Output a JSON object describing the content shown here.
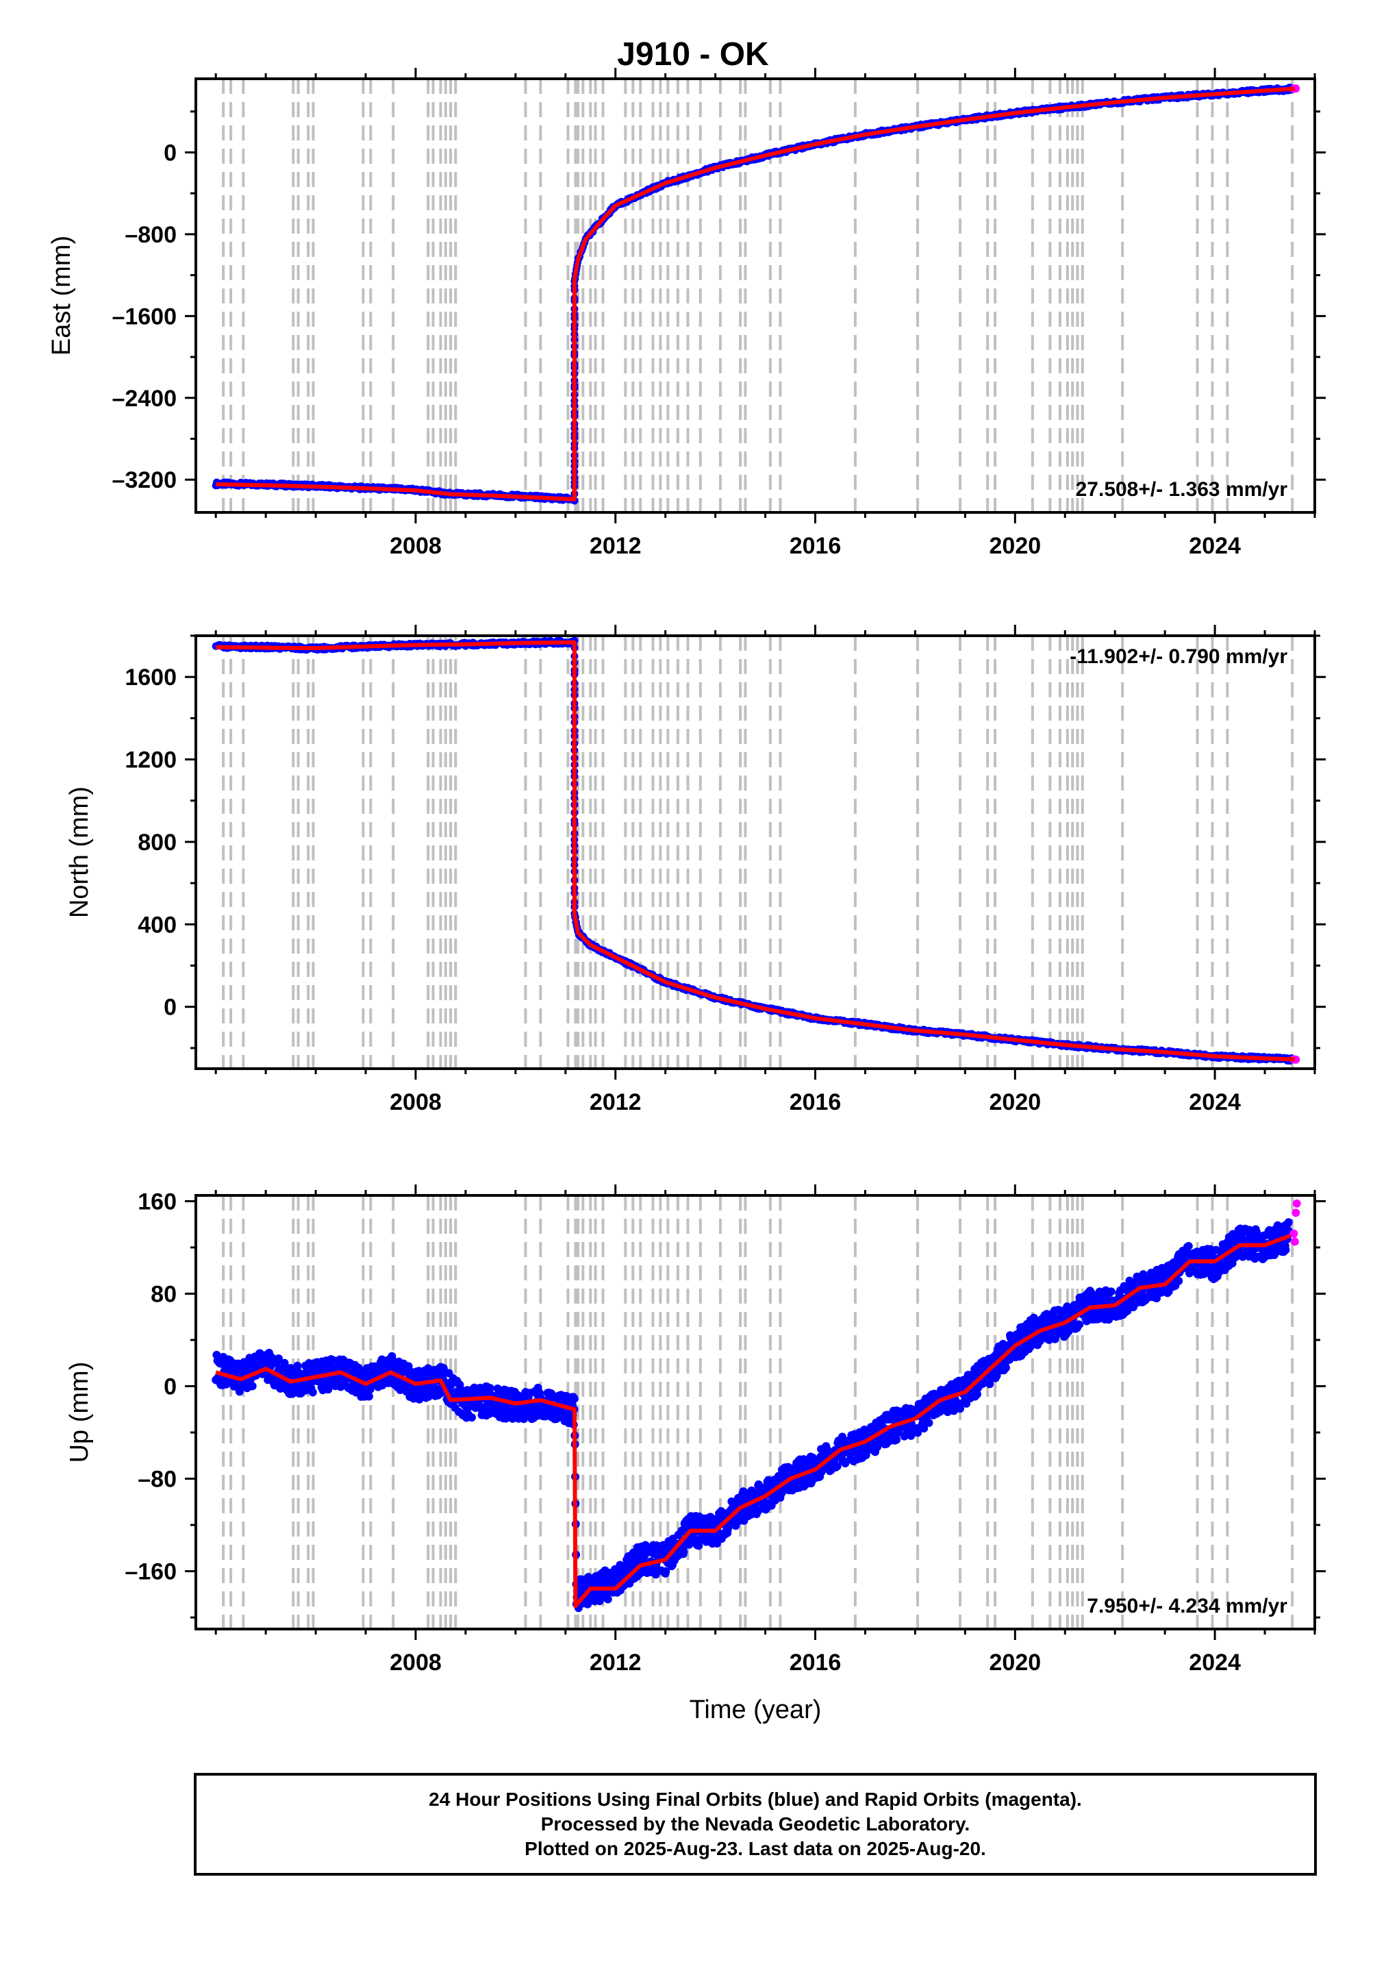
{
  "title": "J910 - OK",
  "footer": {
    "line1": "24 Hour Positions Using Final Orbits (blue) and Rapid Orbits (magenta).",
    "line2": "Processed by the Nevada Geodetic Laboratory.",
    "line3": "Plotted on 2025-Aug-23. Last data on 2025-Aug-20."
  },
  "colors": {
    "final_orbits": "#0000ff",
    "rapid_orbits": "#ff00ff",
    "model": "#ff0000",
    "event_lines": "#c0c0c0",
    "axes": "#000000"
  },
  "chart_data": [
    {
      "type": "scatter",
      "title": "J910 - OK",
      "ylabel": "East (mm)",
      "xlabel": "",
      "xlim": [
        2003.6,
        2026.0
      ],
      "ylim": [
        -3520,
        720
      ],
      "xticks": [
        2008,
        2012,
        2016,
        2020,
        2024
      ],
      "yticks": [
        -3200,
        -2400,
        -1600,
        -800,
        0
      ],
      "rate_label": "27.508+/- 1.363 mm/yr",
      "rate_position": "bottom-right",
      "series": [
        {
          "name": "Final Orbits (blue)",
          "color": "#0000ff",
          "points": [
            [
              2004.0,
              -3240
            ],
            [
              2005.0,
              -3248
            ],
            [
              2006.0,
              -3262
            ],
            [
              2007.0,
              -3282
            ],
            [
              2008.0,
              -3300
            ],
            [
              2008.7,
              -3340
            ],
            [
              2009.5,
              -3350
            ],
            [
              2010.3,
              -3368
            ],
            [
              2011.18,
              -3390
            ],
            [
              2011.18,
              -1250
            ],
            [
              2011.25,
              -1050
            ],
            [
              2011.4,
              -850
            ],
            [
              2011.7,
              -680
            ],
            [
              2012.0,
              -520
            ],
            [
              2012.5,
              -410
            ],
            [
              2013.0,
              -300
            ],
            [
              2014.0,
              -150
            ],
            [
              2015.0,
              -30
            ],
            [
              2016.0,
              80
            ],
            [
              2017.0,
              175
            ],
            [
              2018.0,
              250
            ],
            [
              2019.0,
              320
            ],
            [
              2020.0,
              385
            ],
            [
              2021.0,
              440
            ],
            [
              2022.0,
              490
            ],
            [
              2023.0,
              535
            ],
            [
              2024.0,
              570
            ],
            [
              2025.0,
              605
            ],
            [
              2025.55,
              620
            ]
          ]
        },
        {
          "name": "Rapid Orbits (magenta)",
          "color": "#ff00ff",
          "points": [
            [
              2025.58,
              622
            ],
            [
              2025.62,
              625
            ]
          ]
        }
      ],
      "model": [
        [
          2004.0,
          -3245
        ],
        [
          2005.0,
          -3255
        ],
        [
          2006.0,
          -3268
        ],
        [
          2007.0,
          -3285
        ],
        [
          2008.0,
          -3305
        ],
        [
          2008.7,
          -3342
        ],
        [
          2009.5,
          -3355
        ],
        [
          2010.3,
          -3372
        ],
        [
          2011.18,
          -3392
        ],
        [
          2011.18,
          -1240
        ],
        [
          2011.25,
          -1050
        ],
        [
          2011.4,
          -850
        ],
        [
          2011.7,
          -680
        ],
        [
          2012.0,
          -520
        ],
        [
          2012.5,
          -410
        ],
        [
          2013.0,
          -300
        ],
        [
          2014.0,
          -150
        ],
        [
          2015.0,
          -30
        ],
        [
          2016.0,
          80
        ],
        [
          2017.0,
          175
        ],
        [
          2018.0,
          250
        ],
        [
          2019.0,
          320
        ],
        [
          2020.0,
          385
        ],
        [
          2021.0,
          440
        ],
        [
          2022.0,
          490
        ],
        [
          2023.0,
          535
        ],
        [
          2024.0,
          570
        ],
        [
          2025.0,
          605
        ],
        [
          2025.6,
          622
        ]
      ]
    },
    {
      "type": "scatter",
      "ylabel": "North (mm)",
      "xlabel": "",
      "xlim": [
        2003.6,
        2026.0
      ],
      "ylim": [
        -300,
        1800
      ],
      "xticks": [
        2008,
        2012,
        2016,
        2020,
        2024
      ],
      "yticks": [
        0,
        400,
        800,
        1200,
        1600
      ],
      "rate_label": "-11.902+/- 0.790 mm/yr",
      "rate_position": "top-right",
      "series": [
        {
          "name": "Final Orbits (blue)",
          "color": "#0000ff",
          "points": [
            [
              2004.0,
              1748
            ],
            [
              2005.0,
              1745
            ],
            [
              2006.0,
              1738
            ],
            [
              2007.0,
              1748
            ],
            [
              2008.0,
              1755
            ],
            [
              2009.0,
              1758
            ],
            [
              2010.0,
              1764
            ],
            [
              2011.18,
              1770
            ],
            [
              2011.18,
              450
            ],
            [
              2011.25,
              360
            ],
            [
              2011.5,
              300
            ],
            [
              2012.0,
              240
            ],
            [
              2012.5,
              180
            ],
            [
              2013.0,
              120
            ],
            [
              2014.0,
              45
            ],
            [
              2015.0,
              -10
            ],
            [
              2016.0,
              -55
            ],
            [
              2017.0,
              -85
            ],
            [
              2018.0,
              -115
            ],
            [
              2019.0,
              -135
            ],
            [
              2020.0,
              -160
            ],
            [
              2021.0,
              -185
            ],
            [
              2022.0,
              -205
            ],
            [
              2023.0,
              -220
            ],
            [
              2024.0,
              -240
            ],
            [
              2025.0,
              -250
            ],
            [
              2025.55,
              -255
            ]
          ]
        },
        {
          "name": "Rapid Orbits (magenta)",
          "color": "#ff00ff",
          "points": [
            [
              2025.58,
              -255
            ],
            [
              2025.62,
              -256
            ]
          ]
        }
      ],
      "model": [
        [
          2004.0,
          1745
        ],
        [
          2005.0,
          1742
        ],
        [
          2006.0,
          1740
        ],
        [
          2007.0,
          1748
        ],
        [
          2008.0,
          1755
        ],
        [
          2009.0,
          1758
        ],
        [
          2010.0,
          1764
        ],
        [
          2011.18,
          1768
        ],
        [
          2011.18,
          450
        ],
        [
          2011.25,
          360
        ],
        [
          2011.5,
          300
        ],
        [
          2012.0,
          240
        ],
        [
          2012.5,
          180
        ],
        [
          2013.0,
          120
        ],
        [
          2014.0,
          45
        ],
        [
          2015.0,
          -10
        ],
        [
          2016.0,
          -55
        ],
        [
          2017.0,
          -85
        ],
        [
          2018.0,
          -115
        ],
        [
          2019.0,
          -135
        ],
        [
          2020.0,
          -160
        ],
        [
          2021.0,
          -185
        ],
        [
          2022.0,
          -205
        ],
        [
          2023.0,
          -220
        ],
        [
          2024.0,
          -240
        ],
        [
          2025.0,
          -250
        ],
        [
          2025.6,
          -255
        ]
      ]
    },
    {
      "type": "scatter",
      "ylabel": "Up (mm)",
      "xlabel": "Time (year)",
      "xlim": [
        2003.6,
        2026.0
      ],
      "ylim": [
        -210,
        165
      ],
      "xticks": [
        2008,
        2012,
        2016,
        2020,
        2024
      ],
      "yticks": [
        -160,
        -80,
        0,
        80,
        160
      ],
      "rate_label": "7.950+/- 4.234 mm/yr",
      "rate_position": "bottom-right",
      "series": [
        {
          "name": "Final Orbits (blue)",
          "color": "#0000ff",
          "points": [
            [
              2004.0,
              15
            ],
            [
              2004.5,
              8
            ],
            [
              2005.0,
              18
            ],
            [
              2005.5,
              5
            ],
            [
              2006.0,
              8
            ],
            [
              2006.5,
              12
            ],
            [
              2007.0,
              2
            ],
            [
              2007.5,
              15
            ],
            [
              2008.0,
              0
            ],
            [
              2008.5,
              5
            ],
            [
              2009.0,
              -15
            ],
            [
              2009.5,
              -12
            ],
            [
              2010.0,
              -18
            ],
            [
              2010.5,
              -14
            ],
            [
              2011.0,
              -20
            ],
            [
              2011.18,
              -22
            ],
            [
              2011.22,
              -180
            ],
            [
              2011.5,
              -175
            ],
            [
              2012.0,
              -170
            ],
            [
              2012.5,
              -150
            ],
            [
              2013.0,
              -150
            ],
            [
              2013.5,
              -125
            ],
            [
              2014.0,
              -125
            ],
            [
              2014.5,
              -105
            ],
            [
              2015.0,
              -95
            ],
            [
              2015.5,
              -80
            ],
            [
              2016.0,
              -70
            ],
            [
              2016.5,
              -55
            ],
            [
              2017.0,
              -50
            ],
            [
              2017.5,
              -35
            ],
            [
              2018.0,
              -30
            ],
            [
              2018.5,
              -15
            ],
            [
              2019.0,
              -5
            ],
            [
              2019.5,
              15
            ],
            [
              2020.0,
              35
            ],
            [
              2020.5,
              50
            ],
            [
              2021.0,
              55
            ],
            [
              2021.5,
              70
            ],
            [
              2022.0,
              70
            ],
            [
              2022.5,
              85
            ],
            [
              2023.0,
              90
            ],
            [
              2023.5,
              110
            ],
            [
              2024.0,
              105
            ],
            [
              2024.5,
              125
            ],
            [
              2025.0,
              122
            ],
            [
              2025.5,
              130
            ]
          ]
        },
        {
          "name": "Rapid Orbits (magenta)",
          "color": "#ff00ff",
          "points": [
            [
              2025.58,
              132
            ],
            [
              2025.6,
              125
            ],
            [
              2025.62,
              150
            ],
            [
              2025.64,
              158
            ]
          ]
        }
      ],
      "model": [
        [
          2004.0,
          12
        ],
        [
          2004.5,
          6
        ],
        [
          2005.0,
          15
        ],
        [
          2005.5,
          4
        ],
        [
          2006.0,
          8
        ],
        [
          2006.5,
          12
        ],
        [
          2007.0,
          2
        ],
        [
          2007.5,
          12
        ],
        [
          2008.0,
          2
        ],
        [
          2008.5,
          5
        ],
        [
          2008.7,
          -12
        ],
        [
          2009.5,
          -10
        ],
        [
          2010.0,
          -15
        ],
        [
          2010.5,
          -12
        ],
        [
          2011.0,
          -18
        ],
        [
          2011.18,
          -20
        ],
        [
          2011.2,
          -190
        ],
        [
          2011.5,
          -175
        ],
        [
          2012.0,
          -175
        ],
        [
          2012.5,
          -155
        ],
        [
          2013.0,
          -150
        ],
        [
          2013.5,
          -125
        ],
        [
          2014.0,
          -125
        ],
        [
          2014.5,
          -105
        ],
        [
          2015.0,
          -95
        ],
        [
          2015.5,
          -80
        ],
        [
          2016.0,
          -72
        ],
        [
          2016.5,
          -55
        ],
        [
          2017.0,
          -48
        ],
        [
          2017.5,
          -35
        ],
        [
          2018.0,
          -28
        ],
        [
          2018.5,
          -12
        ],
        [
          2019.0,
          -5
        ],
        [
          2019.5,
          15
        ],
        [
          2020.0,
          35
        ],
        [
          2020.5,
          48
        ],
        [
          2021.0,
          55
        ],
        [
          2021.5,
          68
        ],
        [
          2022.0,
          70
        ],
        [
          2022.5,
          85
        ],
        [
          2023.0,
          88
        ],
        [
          2023.5,
          108
        ],
        [
          2024.0,
          108
        ],
        [
          2024.5,
          122
        ],
        [
          2025.0,
          122
        ],
        [
          2025.5,
          130
        ]
      ]
    }
  ],
  "event_lines_years": [
    2004.15,
    2004.3,
    2004.55,
    2005.55,
    2005.65,
    2005.85,
    2005.95,
    2006.95,
    2007.1,
    2007.55,
    2008.25,
    2008.35,
    2008.5,
    2008.6,
    2008.7,
    2008.8,
    2010.2,
    2010.5,
    2011.05,
    2011.2,
    2011.25,
    2011.35,
    2011.5,
    2011.6,
    2011.75,
    2012.2,
    2012.35,
    2012.5,
    2012.75,
    2012.9,
    2013.05,
    2013.25,
    2013.45,
    2013.7,
    2014.1,
    2014.5,
    2014.6,
    2015.1,
    2015.3,
    2016.8,
    2018.05,
    2018.9,
    2019.45,
    2019.6,
    2020.35,
    2020.7,
    2020.9,
    2021.05,
    2021.15,
    2021.25,
    2021.35,
    2022.15,
    2023.65,
    2023.95,
    2024.25,
    2025.55
  ]
}
